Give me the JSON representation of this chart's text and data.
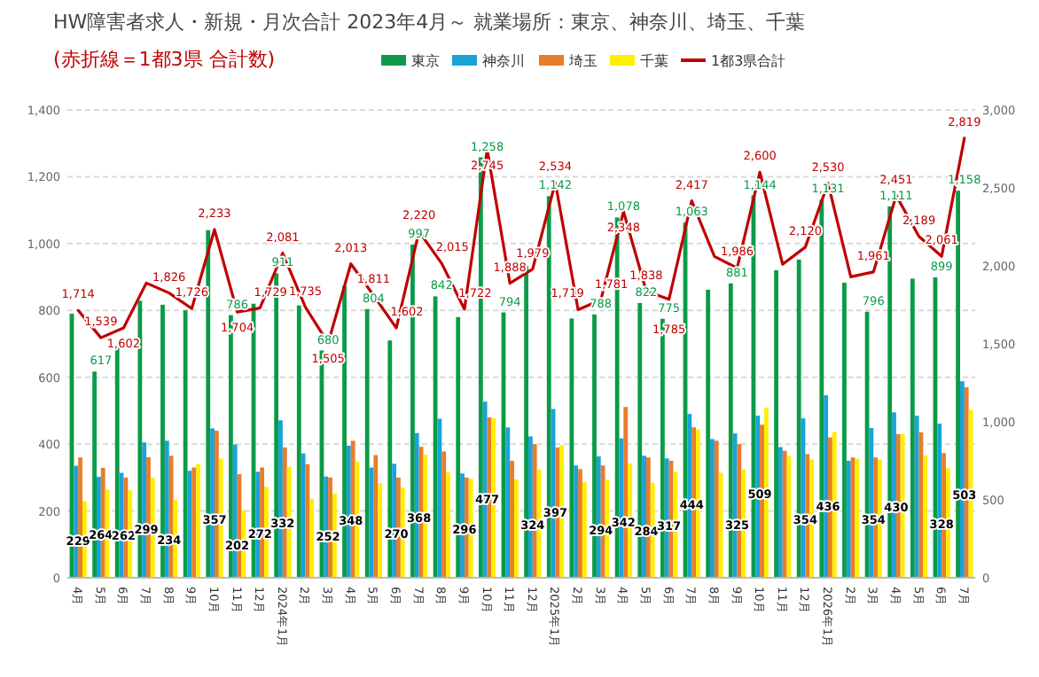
{
  "chart_data": {
    "type": "bar",
    "title": "HW障害者求人・新規・月次合計 2023年4月～  就業場所：東京、神奈川、埼玉、千葉",
    "subtitle": "(赤折線＝1都3県 合計数)",
    "categories": [
      "4月",
      "5月",
      "6月",
      "7月",
      "8月",
      "9月",
      "10月",
      "11月",
      "12月",
      "2024年1月",
      "2月",
      "3月",
      "4月",
      "5月",
      "6月",
      "7月",
      "8月",
      "9月",
      "10月",
      "11月",
      "12月",
      "2025年1月",
      "2月",
      "3月",
      "4月",
      "5月",
      "6月",
      "7月",
      "8月",
      "9月",
      "10月",
      "11月",
      "12月",
      "2026年1月",
      "2月",
      "3月",
      "4月",
      "5月",
      "6月",
      "7月"
    ],
    "ylim": [
      0,
      1400
    ],
    "yticks": [
      0,
      200,
      400,
      600,
      800,
      {
        "value": 1000,
        "label": "1,000"
      },
      {
        "value": 1200,
        "label": "1,200"
      },
      {
        "value": 1400,
        "label": "1,400"
      }
    ],
    "y2lim": [
      0,
      3000
    ],
    "y2ticks": [
      0,
      500,
      {
        "value": 1000,
        "label": "1,000"
      },
      {
        "value": 1500,
        "label": "1,500"
      },
      {
        "value": 2000,
        "label": "2,000"
      },
      {
        "value": 2500,
        "label": "2,500"
      },
      {
        "value": 3000,
        "label": "3,000"
      }
    ],
    "grid": "y",
    "legend": "top",
    "series": [
      {
        "name": "東京",
        "color": "#0a9b48",
        "values": [
          790,
          617,
          690,
          829,
          817,
          800,
          1040,
          786,
          820,
          911,
          815,
          680,
          873,
          804,
          710,
          997,
          842,
          780,
          1258,
          794,
          932,
          1142,
          776,
          788,
          1078,
          822,
          775,
          1063,
          862,
          881,
          1144,
          920,
          952,
          1131,
          883,
          796,
          1111,
          895,
          899,
          1158
        ],
        "value_labels": [
          null,
          "617",
          null,
          null,
          null,
          null,
          null,
          "786",
          null,
          "911",
          null,
          "680",
          null,
          "804",
          null,
          "997",
          "842",
          null,
          "1,258",
          "794",
          null,
          "1,142",
          null,
          "788",
          "1,078",
          "822",
          "775",
          "1,063",
          null,
          "881",
          "1,144",
          null,
          null,
          "1,131",
          null,
          "796",
          "1,111",
          null,
          "899",
          "1,158"
        ]
      },
      {
        "name": "神奈川",
        "color": "#1aa3d9",
        "values": [
          335,
          302,
          314,
          405,
          410,
          320,
          447,
          399,
          317,
          471,
          372,
          303,
          395,
          330,
          341,
          433,
          476,
          312,
          527,
          450,
          423,
          505,
          336,
          363,
          417,
          365,
          357,
          490,
          415,
          432,
          485,
          391,
          477,
          546,
          350,
          448,
          495,
          485,
          461,
          588
        ]
      },
      {
        "name": "埼玉",
        "color": "#e87d2b",
        "values": [
          360,
          329,
          300,
          361,
          365,
          330,
          440,
          310,
          330,
          390,
          340,
          300,
          410,
          367,
          300,
          392,
          378,
          300,
          480,
          350,
          400,
          390,
          325,
          336,
          511,
          360,
          350,
          450,
          410,
          400,
          458,
          380,
          370,
          420,
          360,
          360,
          430,
          435,
          373,
          570
        ]
      },
      {
        "name": "千葉",
        "color": "#ffef00",
        "values": [
          229,
          264,
          262,
          299,
          234,
          340,
          357,
          202,
          272,
          332,
          236,
          252,
          348,
          283,
          270,
          368,
          315,
          296,
          477,
          294,
          324,
          397,
          286,
          294,
          342,
          284,
          317,
          444,
          314,
          325,
          509,
          364,
          354,
          436,
          356,
          354,
          430,
          366,
          328,
          503
        ],
        "value_labels": [
          "229",
          "264",
          "262",
          "299",
          "234",
          null,
          "357",
          "202",
          "272",
          "332",
          null,
          "252",
          "348",
          null,
          "270",
          "368",
          null,
          "296",
          "477",
          null,
          "324",
          "397",
          null,
          "294",
          "342",
          "284",
          "317",
          "444",
          null,
          "325",
          "509",
          null,
          "354",
          "436",
          null,
          "354",
          "430",
          null,
          "328",
          "503"
        ]
      },
      {
        "name": "1都3県合計",
        "type": "line",
        "axis": "y2",
        "color": "#c00000",
        "values": [
          1714,
          1539,
          1602,
          1890,
          1826,
          1726,
          2233,
          1704,
          1729,
          2081,
          1735,
          1505,
          2013,
          1811,
          1602,
          2220,
          2015,
          1722,
          2745,
          1888,
          1979,
          2534,
          1719,
          1781,
          2348,
          1838,
          1785,
          2417,
          2060,
          1986,
          2600,
          2010,
          2120,
          2530,
          1930,
          1961,
          2451,
          2189,
          2061,
          2819
        ],
        "value_labels": [
          "1,714",
          "1,539",
          "1,602",
          null,
          "1,826",
          "1,726",
          "2,233",
          "1,704",
          "1,729",
          "2,081",
          "1,735",
          "1,505",
          "2,013",
          "1,811",
          "1,602",
          "2,220",
          "2,015",
          "1,722",
          "2,745",
          "1,888",
          "1,979",
          "2,534",
          "1,719",
          "1,781",
          "2,348",
          "1,838",
          "1,785",
          "2,417",
          null,
          "1,986",
          "2,600",
          null,
          "2,120",
          "2,530",
          null,
          "1,961",
          "2,451",
          "2,189",
          "2,061",
          "2,819"
        ]
      }
    ]
  }
}
